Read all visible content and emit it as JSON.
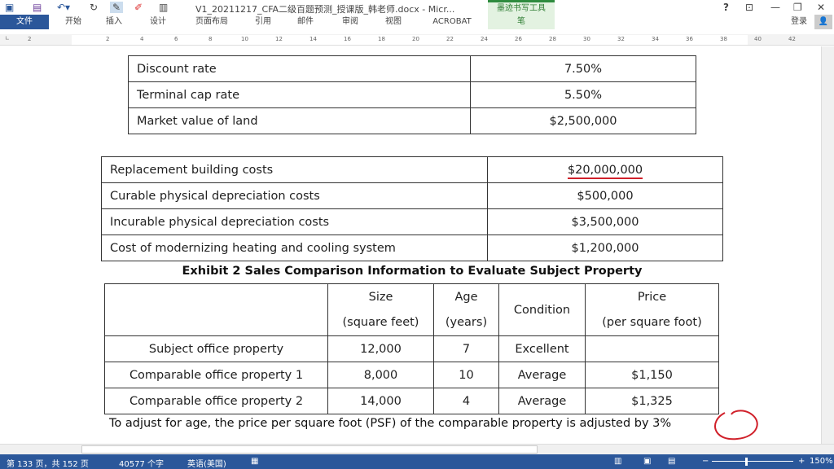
{
  "titlebar": {
    "title": "V1_20211217_CFA二级百题预测_授课版_韩老师.docx - Micr...",
    "context_group": "墨迹书写工具",
    "context_tab": "笔",
    "help": "?",
    "sign_in": "登录"
  },
  "tabs": [
    "文件",
    "开始",
    "插入",
    "设计",
    "页面布局",
    "引用",
    "邮件",
    "审阅",
    "视图",
    "ACROBAT"
  ],
  "ruler": [
    "2",
    "2",
    "4",
    "6",
    "8",
    "10",
    "12",
    "14",
    "16",
    "18",
    "20",
    "22",
    "24",
    "26",
    "28",
    "30",
    "32",
    "34",
    "36",
    "38",
    "40",
    "42"
  ],
  "table1": [
    [
      "Discount rate",
      "7.50%"
    ],
    [
      "Terminal cap rate",
      "5.50%"
    ],
    [
      "Market value of land",
      "$2,500,000"
    ]
  ],
  "table2": [
    [
      "Replacement building costs",
      "$20,000,000"
    ],
    [
      "Curable physical depreciation costs",
      "$500,000"
    ],
    [
      "Incurable physical depreciation costs",
      "$3,500,000"
    ],
    [
      "Cost of modernizing heating and cooling system",
      "$1,200,000"
    ]
  ],
  "exhibit2": {
    "title": "Exhibit 2 Sales Comparison Information to Evaluate Subject Property",
    "headers": {
      "size1": "Size",
      "size2": "(square feet)",
      "age1": "Age",
      "age2": "(years)",
      "condition": "Condition",
      "price1": "Price",
      "price2": "(per square foot)"
    },
    "rows": [
      [
        "Subject office property",
        "12,000",
        "7",
        "Excellent",
        ""
      ],
      [
        "Comparable office property 1",
        "8,000",
        "10",
        "Average",
        "$1,150"
      ],
      [
        "Comparable office property 2",
        "14,000",
        "4",
        "Average",
        "$1,325"
      ]
    ]
  },
  "paragraph": "To adjust for age, the price per square foot (PSF) of the comparable property is adjusted by 3%",
  "status": {
    "page": "第 133 页，共 152 页",
    "words": "40577 个字",
    "language": "英语(美国)",
    "zoom": "150%",
    "zoom_level_percent": 150
  },
  "colors": {
    "accent": "#2b579a",
    "annotation": "#d0202a"
  }
}
